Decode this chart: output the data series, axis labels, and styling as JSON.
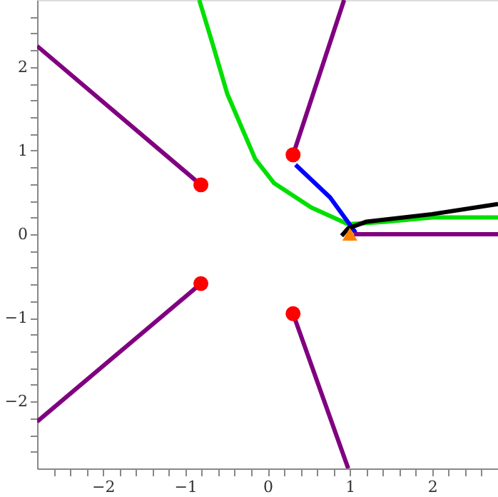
{
  "chart_data": {
    "type": "line",
    "xlim": [
      -2.8,
      2.8
    ],
    "ylim": [
      -2.8,
      2.8
    ],
    "xticks": [
      {
        "value": -2.6,
        "label": null
      },
      {
        "value": -2.4,
        "label": null
      },
      {
        "value": -2.2,
        "label": null
      },
      {
        "value": -2,
        "label": "−2"
      },
      {
        "value": -1.8,
        "label": null
      },
      {
        "value": -1.6,
        "label": null
      },
      {
        "value": -1.4,
        "label": null
      },
      {
        "value": -1.2,
        "label": null
      },
      {
        "value": -1,
        "label": "−1"
      },
      {
        "value": -0.8,
        "label": null
      },
      {
        "value": -0.6,
        "label": null
      },
      {
        "value": -0.4,
        "label": null
      },
      {
        "value": -0.2,
        "label": null
      },
      0,
      {
        "value": 0.2,
        "label": null
      },
      {
        "value": 0.4,
        "label": null
      },
      {
        "value": 0.6,
        "label": null
      },
      {
        "value": 0.8,
        "label": null
      },
      1,
      {
        "value": 1.2,
        "label": null
      },
      {
        "value": 1.4,
        "label": null
      },
      {
        "value": 1.6,
        "label": null
      },
      {
        "value": 1.8,
        "label": null
      },
      2,
      {
        "value": 2.2,
        "label": null
      },
      {
        "value": 2.4,
        "label": null
      },
      {
        "value": 2.6,
        "label": null
      }
    ],
    "yticks": [
      {
        "value": -2.6,
        "label": null
      },
      {
        "value": -2.4,
        "label": null
      },
      {
        "value": -2.2,
        "label": null
      },
      {
        "value": -2,
        "label": "−2"
      },
      {
        "value": -1.8,
        "label": null
      },
      {
        "value": -1.6,
        "label": null
      },
      {
        "value": -1.4,
        "label": null
      },
      {
        "value": -1.2,
        "label": null
      },
      {
        "value": -1,
        "label": "−1"
      },
      {
        "value": -0.8,
        "label": null
      },
      {
        "value": -0.6,
        "label": null
      },
      {
        "value": -0.4,
        "label": null
      },
      {
        "value": -0.2,
        "label": null
      },
      0,
      {
        "value": 0.2,
        "label": null
      },
      {
        "value": 0.4,
        "label": null
      },
      {
        "value": 0.6,
        "label": null
      },
      {
        "value": 0.8,
        "label": null
      },
      1,
      {
        "value": 1.2,
        "label": null
      },
      {
        "value": 1.4,
        "label": null
      },
      {
        "value": 1.6,
        "label": null
      },
      {
        "value": 1.8,
        "label": null
      },
      2,
      {
        "value": 2.2,
        "label": null
      },
      {
        "value": 2.4,
        "label": null
      },
      {
        "value": 2.6,
        "label": null
      }
    ],
    "grid": false,
    "marker": "none",
    "line_style": "solid",
    "series": [
      {
        "color": "#00e000",
        "x": [
          -0.83,
          -0.66,
          -0.49,
          -0.15,
          0.08,
          0.53,
          0.98,
          1.44,
          2.0,
          2.8
        ],
        "values": [
          2.8,
          2.25,
          1.68,
          0.9,
          0.61,
          0.32,
          0.12,
          0.15,
          0.2,
          0.2
        ]
      },
      {
        "color": "#0000ff",
        "x": [
          0.34,
          0.76,
          1.07
        ],
        "values": [
          0.83,
          0.44,
          0.02
        ]
      },
      {
        "color": "#000000",
        "x": [
          0.9,
          0.98,
          1.2,
          2.0,
          2.8
        ],
        "values": [
          -0.02,
          0.07,
          0.15,
          0.24,
          0.36
        ]
      },
      {
        "color": "#800080",
        "x": [
          -0.81,
          -2.8
        ],
        "values": [
          0.59,
          2.25
        ]
      },
      {
        "color": "#800080",
        "x": [
          -0.81,
          -2.8
        ],
        "values": [
          -0.59,
          -2.24
        ]
      },
      {
        "color": "#800080",
        "x": [
          0.31,
          0.93
        ],
        "values": [
          0.95,
          2.8
        ]
      },
      {
        "color": "#800080",
        "x": [
          0.31,
          0.98
        ],
        "values": [
          -0.95,
          -2.8
        ]
      },
      {
        "color": "#800080",
        "x": [
          1.05,
          2.8
        ],
        "values": [
          0,
          0
        ]
      },
      {
        "type": "scatter",
        "marker": "circle",
        "color": "#ff0000",
        "x": [
          -0.81,
          -0.81,
          0.31,
          0.31
        ],
        "values": [
          0.59,
          -0.59,
          0.95,
          -0.95
        ]
      },
      {
        "type": "scatter",
        "marker": "triangle",
        "color": "#ff8000",
        "x": [
          1.0
        ],
        "values": [
          0.0
        ]
      }
    ]
  }
}
